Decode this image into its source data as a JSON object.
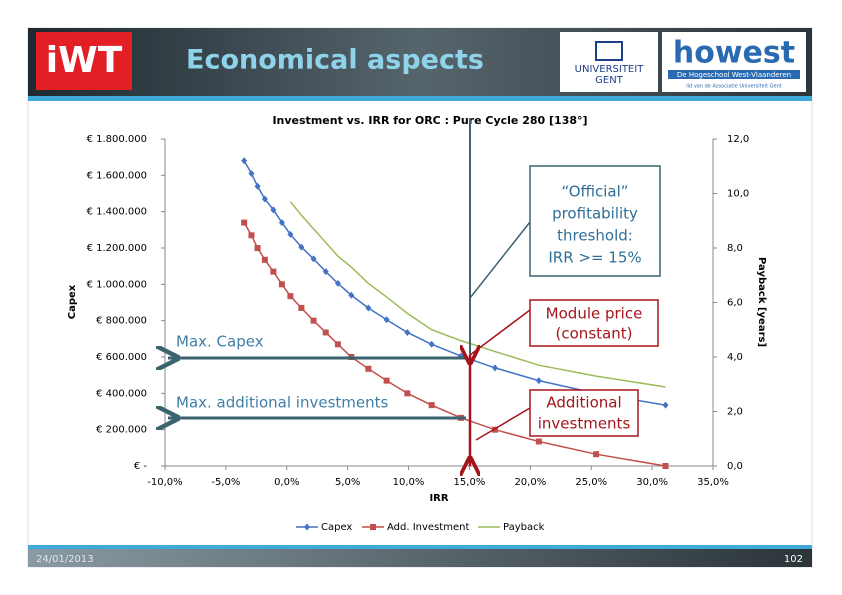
{
  "header": {
    "logo_left": "iWT",
    "title": "Economical aspects",
    "logo_ugent": [
      "UNIVERSITEIT",
      "GENT"
    ],
    "logo_howest": "howest",
    "howest_sub": "De Hogeschool West-Vlaanderen",
    "howest_sub2": "lid van de Associatie Universiteit Gent"
  },
  "chart_data": {
    "type": "line",
    "title": "Investment vs. IRR for ORC : Pure Cycle 280 [138°]",
    "x_label": "IRR",
    "y_label": "Capex",
    "y2_label": "Payback [years]",
    "x": [
      -3.5,
      -2.9,
      -2.4,
      -1.8,
      -1.1,
      -0.4,
      0.3,
      1.2,
      2.2,
      3.2,
      4.2,
      5.3,
      6.7,
      8.2,
      9.9,
      11.9,
      14.3,
      17.1,
      20.7,
      25.4,
      31.1
    ],
    "series": [
      {
        "name": "Capex",
        "color": "#4472c4",
        "marker": "diamond",
        "values": [
          1680000,
          1610000,
          1540000,
          1470000,
          1410000,
          1340000,
          1275000,
          1205000,
          1140000,
          1070000,
          1005000,
          940000,
          870000,
          805000,
          735000,
          670000,
          605000,
          540000,
          470000,
          400000,
          335000
        ]
      },
      {
        "name": "Add. Investment",
        "color": "#c0504d",
        "marker": "square",
        "values": [
          1340000,
          1270000,
          1200000,
          1135000,
          1070000,
          1000000,
          935000,
          870000,
          800000,
          735000,
          670000,
          600000,
          535000,
          470000,
          400000,
          335000,
          265000,
          200000,
          135000,
          65000,
          0
        ]
      },
      {
        "name": "Payback",
        "color": "#9bbb59",
        "axis": "y2",
        "values": [
          null,
          null,
          null,
          null,
          null,
          null,
          9.7,
          9.2,
          8.7,
          8.2,
          7.7,
          7.3,
          6.7,
          6.2,
          5.6,
          5.0,
          4.6,
          4.2,
          3.7,
          3.3,
          2.9
        ]
      }
    ],
    "xlim": [
      -10,
      35
    ],
    "xticks": [
      {
        "value": -10,
        "label": "-10,0%"
      },
      {
        "value": -5,
        "label": "-5,0%"
      },
      {
        "value": 0,
        "label": "0,0%"
      },
      {
        "value": 5,
        "label": "5,0%"
      },
      {
        "value": 10,
        "label": "10,0%"
      },
      {
        "value": 15,
        "label": "15,0%"
      },
      {
        "value": 20,
        "label": "20,0%"
      },
      {
        "value": 25,
        "label": "25,0%"
      },
      {
        "value": 30,
        "label": "30,0%"
      },
      {
        "value": 35,
        "label": "35,0%"
      }
    ],
    "ylim": [
      0,
      1800000
    ],
    "yticks": [
      {
        "value": 0,
        "label": "€ -"
      },
      {
        "value": 200000,
        "label": "€ 200.000"
      },
      {
        "value": 400000,
        "label": "€ 400.000"
      },
      {
        "value": 600000,
        "label": "€ 600.000"
      },
      {
        "value": 800000,
        "label": "€ 800.000"
      },
      {
        "value": 1000000,
        "label": "€ 1.000.000"
      },
      {
        "value": 1200000,
        "label": "€ 1.200.000"
      },
      {
        "value": 1400000,
        "label": "€ 1.400.000"
      },
      {
        "value": 1600000,
        "label": "€ 1.600.000"
      },
      {
        "value": 1800000,
        "label": "€ 1.800.000"
      }
    ],
    "y2lim": [
      0,
      12
    ],
    "y2ticks": [
      {
        "value": 0,
        "label": "0,0"
      },
      {
        "value": 2,
        "label": "2,0"
      },
      {
        "value": 4,
        "label": "4,0"
      },
      {
        "value": 6,
        "label": "6,0"
      },
      {
        "value": 8,
        "label": "8,0"
      },
      {
        "value": 10,
        "label": "10,0"
      },
      {
        "value": 12,
        "label": "12,0"
      }
    ],
    "legend": "bottom",
    "annotations": {
      "max_capex": "Max. Capex",
      "max_additional": "Max. additional investments",
      "threshold": [
        "“Official”",
        "profitability",
        "threshold:",
        "IRR >= 15%"
      ],
      "module_price": [
        "Module price",
        "(constant)"
      ],
      "additional": [
        "Additional",
        "investments"
      ]
    }
  },
  "footer": {
    "date": "24/01/2013",
    "page": "102"
  }
}
